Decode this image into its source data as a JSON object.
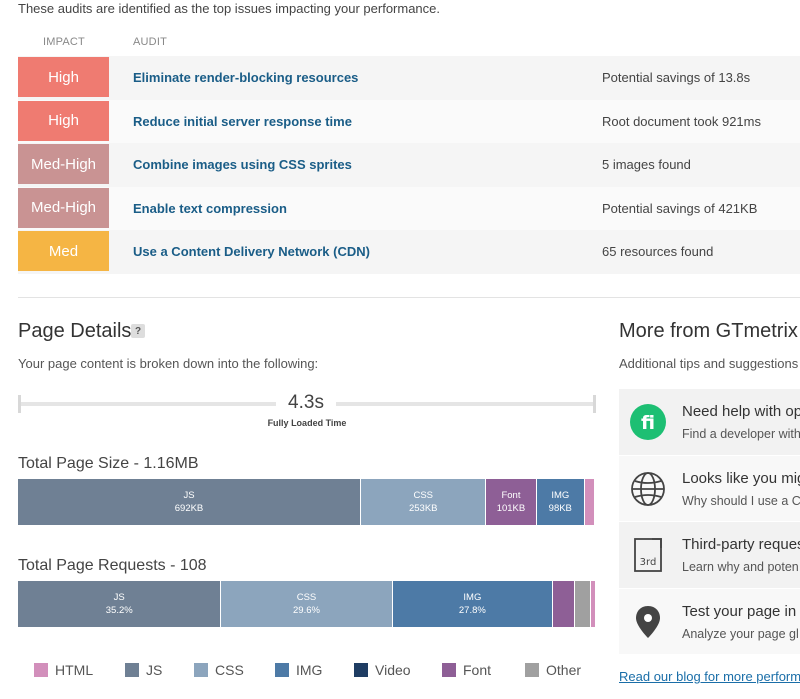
{
  "intro": "These audits are identified as the top issues impacting your performance.",
  "table_headers": {
    "impact": "IMPACT",
    "audit": "AUDIT"
  },
  "audits": [
    {
      "impact": "High",
      "impact_color": "#ef7b71",
      "name": "Eliminate render-blocking resources",
      "result": "Potential savings of 13.8s"
    },
    {
      "impact": "High",
      "impact_color": "#ef7b71",
      "name": "Reduce initial server response time",
      "result": "Root document took 921ms"
    },
    {
      "impact": "Med-High",
      "impact_color": "#c99393",
      "name": "Combine images using CSS sprites",
      "result": "5 images found"
    },
    {
      "impact": "Med-High",
      "impact_color": "#c99393",
      "name": "Enable text compression",
      "result": "Potential savings of 421KB"
    },
    {
      "impact": "Med",
      "impact_color": "#f5b544",
      "name": "Use a Content Delivery Network (CDN)",
      "result": "65 resources found"
    }
  ],
  "page_details": {
    "title": "Page Details",
    "help": "?",
    "subtitle": "Your page content is broken down into the following:",
    "fully_loaded_value": "4.3s",
    "fully_loaded_label": "Fully Loaded Time",
    "size_title": "Total Page Size - 1.16MB",
    "requests_title": "Total Page Requests - 108"
  },
  "chart_data": [
    {
      "type": "bar",
      "title": "Total Page Size - 1.16MB",
      "unit": "KB",
      "segments": [
        {
          "name": "JS",
          "label": "692KB",
          "value": 692,
          "color": "#6f8094"
        },
        {
          "name": "CSS",
          "label": "253KB",
          "value": 253,
          "color": "#8ca5bd"
        },
        {
          "name": "Font",
          "label": "101KB",
          "value": 101,
          "color": "#8e5f96"
        },
        {
          "name": "IMG",
          "label": "98KB",
          "value": 98,
          "color": "#4d7aa6"
        },
        {
          "name": "HTML",
          "label": "",
          "value": 20,
          "color": "#d28fbb"
        },
        {
          "name": "Other",
          "label": "",
          "value": 2,
          "color": "#a0a0a0"
        }
      ]
    },
    {
      "type": "bar",
      "title": "Total Page Requests - 108",
      "unit": "%",
      "segments": [
        {
          "name": "JS",
          "label": "35.2%",
          "value": 35.2,
          "color": "#6f8094"
        },
        {
          "name": "CSS",
          "label": "29.6%",
          "value": 29.6,
          "color": "#8ca5bd"
        },
        {
          "name": "IMG",
          "label": "27.8%",
          "value": 27.8,
          "color": "#4d7aa6"
        },
        {
          "name": "Font",
          "label": "",
          "value": 3.7,
          "color": "#8e5f96"
        },
        {
          "name": "Other",
          "label": "",
          "value": 2.8,
          "color": "#a0a0a0"
        },
        {
          "name": "HTML",
          "label": "",
          "value": 0.9,
          "color": "#d28fbb"
        }
      ]
    }
  ],
  "legend": [
    {
      "label": "HTML",
      "color": "#d28fbb"
    },
    {
      "label": "JS",
      "color": "#6f8094"
    },
    {
      "label": "CSS",
      "color": "#8ca5bd"
    },
    {
      "label": "IMG",
      "color": "#4d7aa6"
    },
    {
      "label": "Video",
      "color": "#1f3d63"
    },
    {
      "label": "Font",
      "color": "#8e5f96"
    },
    {
      "label": "Other",
      "color": "#a0a0a0"
    }
  ],
  "more": {
    "title": "More from GTmetrix",
    "subtitle": "Additional tips and suggestions b",
    "items": [
      {
        "icon": "fiverr-icon",
        "title": "Need help with op",
        "desc": "Find a developer with"
      },
      {
        "icon": "globe-icon",
        "title": "Looks like you mig",
        "desc": "Why should I use a C"
      },
      {
        "icon": "third-party-icon",
        "title": "Third-party reques",
        "desc": "Learn why and poten"
      },
      {
        "icon": "map-pin-icon",
        "title": "Test your page in m",
        "desc": "Analyze your page gl"
      }
    ],
    "link": "Read our blog for more performa"
  }
}
